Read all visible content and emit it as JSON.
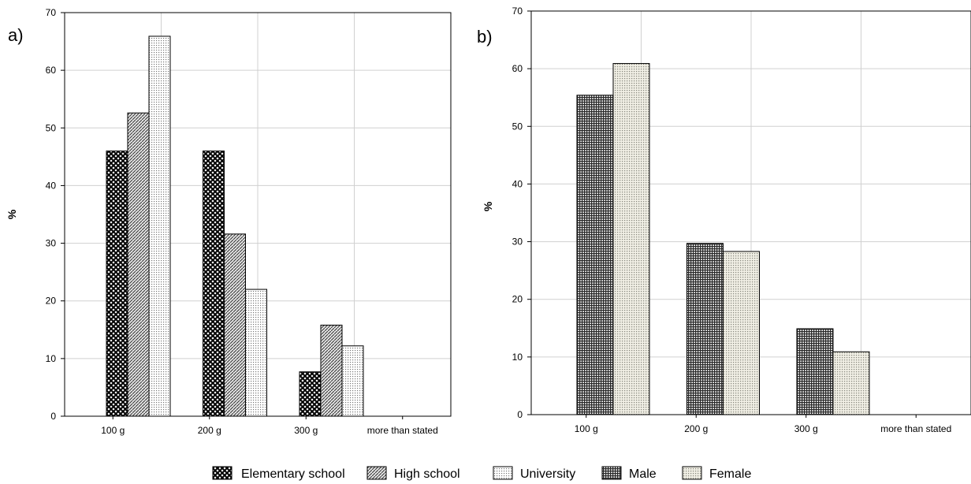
{
  "chart_data": [
    {
      "panel_label": "a)",
      "type": "bar",
      "ylabel": "%",
      "xlabel": "",
      "ylim": [
        0,
        70
      ],
      "yticks": [
        0,
        10,
        20,
        30,
        40,
        50,
        60,
        70
      ],
      "grid": true,
      "categories": [
        "100 g",
        "200 g",
        "300 g",
        "more than stated"
      ],
      "series": [
        {
          "name": "Elementary school",
          "values": [
            46,
            46,
            7.7,
            0
          ],
          "pattern": "crosshatch-dark"
        },
        {
          "name": "High school",
          "values": [
            52.6,
            31.6,
            15.8,
            0
          ],
          "pattern": "diagonal"
        },
        {
          "name": "University",
          "values": [
            65.9,
            22,
            12.2,
            0
          ],
          "pattern": "dots-light"
        }
      ]
    },
    {
      "panel_label": "b)",
      "type": "bar",
      "ylabel": "%",
      "xlabel": "",
      "ylim": [
        0,
        70
      ],
      "yticks": [
        0,
        10,
        20,
        30,
        40,
        50,
        60,
        70
      ],
      "grid": true,
      "categories": [
        "100 g",
        "200 g",
        "300 g",
        "more than stated"
      ],
      "series": [
        {
          "name": "Male",
          "values": [
            55.4,
            29.7,
            14.9,
            0
          ],
          "pattern": "grid-dark"
        },
        {
          "name": "Female",
          "values": [
            60.9,
            28.3,
            10.9,
            0
          ],
          "pattern": "grid-light"
        }
      ]
    }
  ],
  "legend": {
    "placement": "bottom-center",
    "items": [
      {
        "label": "Elementary school",
        "pattern": "crosshatch-dark"
      },
      {
        "label": "High school",
        "pattern": "diagonal"
      },
      {
        "label": "University",
        "pattern": "dots-light"
      },
      {
        "label": "Male",
        "pattern": "grid-dark"
      },
      {
        "label": "Female",
        "pattern": "grid-light"
      }
    ]
  }
}
